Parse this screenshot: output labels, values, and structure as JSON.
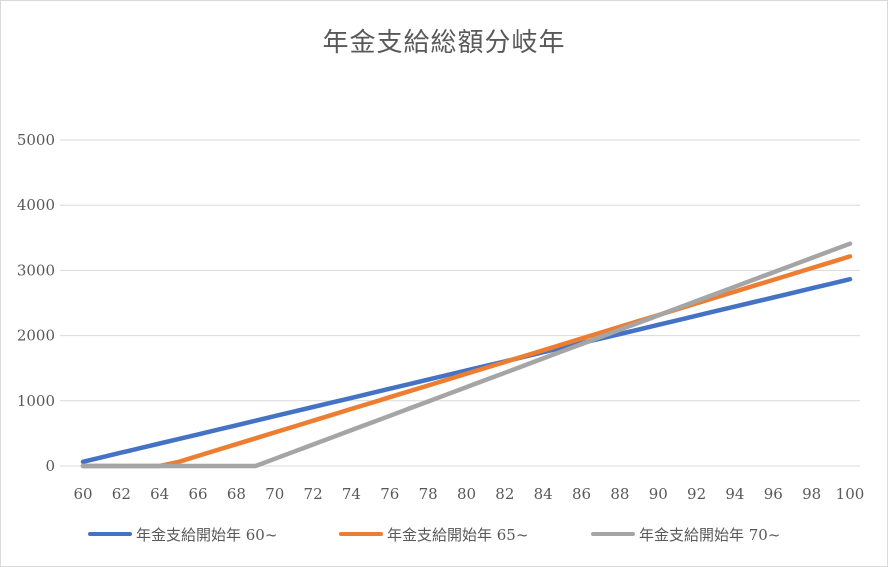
{
  "chart_data": {
    "type": "line",
    "title": "年金支給総額分岐年",
    "xlabel": "",
    "ylabel": "",
    "x": [
      60,
      61,
      62,
      63,
      64,
      65,
      66,
      67,
      68,
      69,
      70,
      71,
      72,
      73,
      74,
      75,
      76,
      77,
      78,
      79,
      80,
      81,
      82,
      83,
      84,
      85,
      86,
      87,
      88,
      89,
      90,
      91,
      92,
      93,
      94,
      95,
      96,
      97,
      98,
      99,
      100
    ],
    "xlim": [
      60,
      100
    ],
    "ylim": [
      0,
      5000
    ],
    "x_ticks": [
      "60",
      "62",
      "64",
      "66",
      "68",
      "70",
      "72",
      "74",
      "76",
      "78",
      "80",
      "82",
      "84",
      "86",
      "88",
      "90",
      "92",
      "94",
      "96",
      "98",
      "100"
    ],
    "y_ticks": [
      "0",
      "1000",
      "2000",
      "3000",
      "4000",
      "5000"
    ],
    "grid": "horizontal",
    "legend_position": "bottom",
    "series": [
      {
        "name": "年金支給開始年 60~",
        "color": "#4472c4",
        "values": [
          65,
          135,
          205,
          275,
          345,
          415,
          485,
          555,
          625,
          695,
          765,
          835,
          905,
          975,
          1045,
          1115,
          1185,
          1255,
          1325,
          1395,
          1465,
          1535,
          1605,
          1675,
          1745,
          1815,
          1885,
          1955,
          2025,
          2095,
          2165,
          2235,
          2305,
          2375,
          2445,
          2515,
          2585,
          2655,
          2725,
          2795,
          2865
        ]
      },
      {
        "name": "年金支給開始年 65~",
        "color": "#ed7d31",
        "values": [
          0,
          0,
          0,
          0,
          0,
          65,
          155,
          245,
          335,
          425,
          515,
          605,
          695,
          785,
          875,
          965,
          1055,
          1145,
          1235,
          1325,
          1415,
          1505,
          1595,
          1685,
          1775,
          1865,
          1955,
          2045,
          2135,
          2225,
          2315,
          2405,
          2495,
          2585,
          2675,
          2765,
          2855,
          2945,
          3035,
          3125,
          3215
        ]
      },
      {
        "name": "年金支給開始年 70~",
        "color": "#a5a5a5",
        "values": [
          0,
          0,
          0,
          0,
          0,
          0,
          0,
          0,
          0,
          0,
          110,
          220,
          330,
          440,
          550,
          660,
          770,
          880,
          990,
          1100,
          1210,
          1320,
          1430,
          1540,
          1650,
          1760,
          1870,
          1980,
          2090,
          2200,
          2310,
          2420,
          2530,
          2640,
          2750,
          2860,
          2970,
          3080,
          3190,
          3300,
          3410
        ]
      }
    ]
  }
}
